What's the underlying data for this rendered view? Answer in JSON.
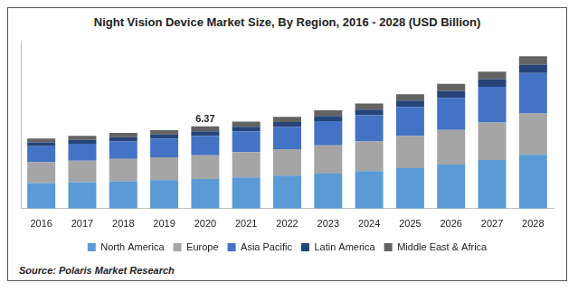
{
  "chart_data": {
    "type": "bar",
    "title": "Night Vision Device Market Size, By Region, 2016 - 2028 (USD Billion)",
    "source": "Source: Polaris Market Research",
    "stacked": true,
    "legend": "bottom",
    "grid": false,
    "tick_labels": "x",
    "categories": [
      "2016",
      "2017",
      "2018",
      "2019",
      "2020",
      "2021",
      "2022",
      "2023",
      "2024",
      "2025",
      "2026",
      "2027",
      "2028"
    ],
    "series": [
      {
        "name": "North America",
        "color": "#5b9bd5",
        "values": [
          1.98,
          2.05,
          2.12,
          2.2,
          2.29,
          2.42,
          2.55,
          2.72,
          2.9,
          3.14,
          3.42,
          3.76,
          4.17
        ]
      },
      {
        "name": "Europe",
        "color": "#a5a5a5",
        "values": [
          1.61,
          1.67,
          1.73,
          1.78,
          1.85,
          1.95,
          2.05,
          2.18,
          2.3,
          2.48,
          2.67,
          2.9,
          3.2
        ]
      },
      {
        "name": "Asia Pacific",
        "color": "#4472c4",
        "values": [
          1.24,
          1.3,
          1.37,
          1.44,
          1.5,
          1.61,
          1.72,
          1.88,
          2.03,
          2.26,
          2.49,
          2.77,
          3.13
        ]
      },
      {
        "name": "Latin America",
        "color": "#264478",
        "values": [
          0.29,
          0.3,
          0.31,
          0.32,
          0.35,
          0.36,
          0.38,
          0.4,
          0.44,
          0.48,
          0.53,
          0.58,
          0.64
        ]
      },
      {
        "name": "Middle East & Africa",
        "color": "#636363",
        "values": [
          0.3,
          0.32,
          0.33,
          0.34,
          0.38,
          0.39,
          0.4,
          0.43,
          0.46,
          0.5,
          0.55,
          0.6,
          0.65
        ]
      }
    ],
    "annotations": [
      {
        "category": "2020",
        "value": 6.37
      }
    ],
    "ylim": [
      0,
      13
    ]
  }
}
